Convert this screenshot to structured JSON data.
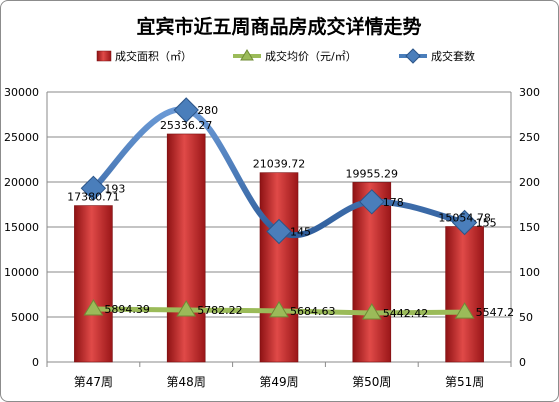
{
  "chart_data": {
    "type": "bar",
    "title": "宜宾市近五周商品房成交详情走势",
    "categories": [
      "第47周",
      "第48周",
      "第49周",
      "第50周",
      "第51周"
    ],
    "y_left": {
      "ylim": [
        0,
        30000
      ],
      "ticks": [
        "0",
        "5000",
        "10000",
        "15000",
        "20000",
        "25000",
        "30000"
      ]
    },
    "y_right": {
      "ylim": [
        0,
        300
      ],
      "ticks": [
        "0",
        "50",
        "100",
        "150",
        "200",
        "250",
        "300"
      ]
    },
    "legend_position": "top",
    "series": [
      {
        "name": "成交面积（㎡）",
        "kind": "bar",
        "axis": "left",
        "color": "#c0282a",
        "values": [
          17380.71,
          25336.27,
          21039.72,
          19955.29,
          15054.78
        ],
        "labels": [
          "17380.71",
          "25336.27",
          "21039.72",
          "19955.29",
          "15054.78"
        ]
      },
      {
        "name": "成交均价（元/㎡）",
        "kind": "line",
        "axis": "left",
        "color": "#9bbb59",
        "values": [
          5894.39,
          5782.22,
          5684.63,
          5442.42,
          5547.2
        ],
        "labels": [
          "5894.39",
          "5782.22",
          "5684.63",
          "5442.42",
          "5547.2"
        ]
      },
      {
        "name": "成交套数",
        "kind": "line",
        "axis": "right",
        "color": "#4a7ebb",
        "values": [
          193,
          280,
          145,
          178,
          155
        ],
        "labels": [
          "193",
          "280",
          "145",
          "178",
          "155"
        ]
      }
    ]
  }
}
